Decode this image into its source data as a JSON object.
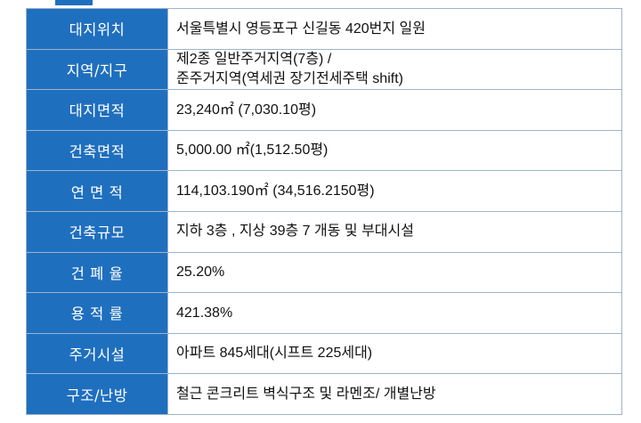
{
  "rows": [
    {
      "label": "대지위치",
      "value": [
        "서울특별시 영등포구 신길동 420번지 일원"
      ]
    },
    {
      "label": "지역/지구",
      "value": [
        "제2종 일반주거지역(7층) /",
        "준주거지역(역세권 장기전세주택 shift)"
      ]
    },
    {
      "label": "대지면적",
      "value": [
        "23,240㎡ (7,030.10평)"
      ]
    },
    {
      "label": "건축면적",
      "value": [
        "5,000.00 ㎡(1,512.50평)"
      ]
    },
    {
      "label": "연 면 적",
      "value": [
        "114,103.190㎡ (34,516.2150평)"
      ]
    },
    {
      "label": "건축규모",
      "value": [
        "지하 3층 , 지상 39층 7 개동 및 부대시설"
      ]
    },
    {
      "label": "건 폐 율",
      "value": [
        "25.20%"
      ]
    },
    {
      "label": "용 적 률",
      "value": [
        "421.38%"
      ]
    },
    {
      "label": "주거시설",
      "value": [
        "아파트 845세대(시프트 225세대)"
      ]
    },
    {
      "label": "구조/난방",
      "value": [
        "철근 콘크리트 벽식구조 및 라멘조/ 개별난방"
      ]
    }
  ],
  "colors": {
    "label_bg": "#1f6fbf",
    "label_text": "#ffffff",
    "border": "#9fb3c8"
  }
}
